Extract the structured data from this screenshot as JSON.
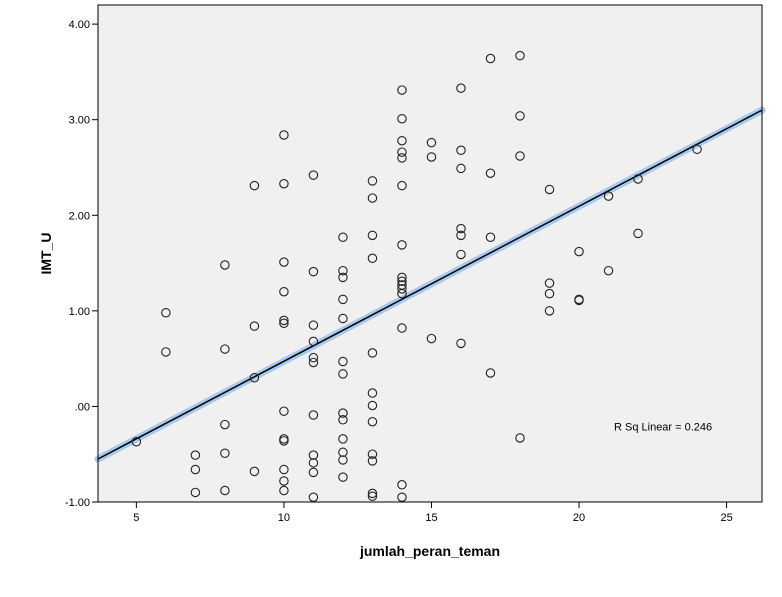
{
  "chart_data": {
    "type": "scatter",
    "title": "",
    "xlabel": "jumlah_peran_teman",
    "ylabel": "IMT_U",
    "xlim": [
      3.7,
      26.2
    ],
    "ylim": [
      -1.0,
      4.2
    ],
    "x_ticks": [
      5,
      10,
      15,
      20,
      25
    ],
    "x_tick_labels": [
      "5",
      "10",
      "15",
      "20",
      "25"
    ],
    "y_ticks": [
      -1,
      0,
      1,
      2,
      3,
      4
    ],
    "y_tick_labels": [
      "-1.00",
      ".00",
      "1.00",
      "2.00",
      "3.00",
      "4.00"
    ],
    "grid": false,
    "plot_background": "#f0f0f0",
    "fit_line": {
      "type": "linear",
      "x": [
        3.7,
        26.2
      ],
      "y": [
        -0.55,
        3.1
      ],
      "color": "#000000",
      "highlight_color": "#a8c8ee"
    },
    "annotation": "R Sq Linear = 0.246",
    "points": [
      {
        "x": 5,
        "y": -0.37
      },
      {
        "x": 6,
        "y": 0.98
      },
      {
        "x": 6,
        "y": 0.57
      },
      {
        "x": 7,
        "y": -0.51
      },
      {
        "x": 7,
        "y": -0.66
      },
      {
        "x": 7,
        "y": -0.9
      },
      {
        "x": 8,
        "y": 1.48
      },
      {
        "x": 8,
        "y": 0.6
      },
      {
        "x": 8,
        "y": -0.19
      },
      {
        "x": 8,
        "y": -0.49
      },
      {
        "x": 8,
        "y": -0.88
      },
      {
        "x": 9,
        "y": 2.31
      },
      {
        "x": 9,
        "y": 0.84
      },
      {
        "x": 9,
        "y": 0.3
      },
      {
        "x": 9,
        "y": -0.68
      },
      {
        "x": 10,
        "y": 2.84
      },
      {
        "x": 10,
        "y": 2.33
      },
      {
        "x": 10,
        "y": 1.51
      },
      {
        "x": 10,
        "y": 1.2
      },
      {
        "x": 10,
        "y": 0.9
      },
      {
        "x": 10,
        "y": 0.87
      },
      {
        "x": 10,
        "y": -0.05
      },
      {
        "x": 10,
        "y": -0.34
      },
      {
        "x": 10,
        "y": -0.36
      },
      {
        "x": 10,
        "y": -0.66
      },
      {
        "x": 10,
        "y": -0.78
      },
      {
        "x": 10,
        "y": -0.88
      },
      {
        "x": 11,
        "y": 2.42
      },
      {
        "x": 11,
        "y": 1.41
      },
      {
        "x": 11,
        "y": 0.85
      },
      {
        "x": 11,
        "y": 0.68
      },
      {
        "x": 11,
        "y": 0.51
      },
      {
        "x": 11,
        "y": 0.46
      },
      {
        "x": 11,
        "y": -0.09
      },
      {
        "x": 11,
        "y": -0.51
      },
      {
        "x": 11,
        "y": -0.59
      },
      {
        "x": 11,
        "y": -0.69
      },
      {
        "x": 11,
        "y": -0.95
      },
      {
        "x": 12,
        "y": 1.77
      },
      {
        "x": 12,
        "y": 1.42
      },
      {
        "x": 12,
        "y": 1.35
      },
      {
        "x": 12,
        "y": 1.12
      },
      {
        "x": 12,
        "y": 0.92
      },
      {
        "x": 12,
        "y": 0.47
      },
      {
        "x": 12,
        "y": 0.34
      },
      {
        "x": 12,
        "y": -0.07
      },
      {
        "x": 12,
        "y": -0.14
      },
      {
        "x": 12,
        "y": -0.34
      },
      {
        "x": 12,
        "y": -0.48
      },
      {
        "x": 12,
        "y": -0.56
      },
      {
        "x": 12,
        "y": -0.74
      },
      {
        "x": 13,
        "y": 2.36
      },
      {
        "x": 13,
        "y": 2.18
      },
      {
        "x": 13,
        "y": 1.79
      },
      {
        "x": 13,
        "y": 1.55
      },
      {
        "x": 13,
        "y": 0.56
      },
      {
        "x": 13,
        "y": 0.14
      },
      {
        "x": 13,
        "y": 0.01
      },
      {
        "x": 13,
        "y": -0.16
      },
      {
        "x": 13,
        "y": -0.5
      },
      {
        "x": 13,
        "y": -0.57
      },
      {
        "x": 13,
        "y": -0.91
      },
      {
        "x": 13,
        "y": -0.94
      },
      {
        "x": 14,
        "y": 3.31
      },
      {
        "x": 14,
        "y": 3.01
      },
      {
        "x": 14,
        "y": 2.78
      },
      {
        "x": 14,
        "y": 2.66
      },
      {
        "x": 14,
        "y": 2.6
      },
      {
        "x": 14,
        "y": 2.31
      },
      {
        "x": 14,
        "y": 1.69
      },
      {
        "x": 14,
        "y": 1.35
      },
      {
        "x": 14,
        "y": 1.31
      },
      {
        "x": 14,
        "y": 1.27
      },
      {
        "x": 14,
        "y": 1.23
      },
      {
        "x": 14,
        "y": 1.18
      },
      {
        "x": 14,
        "y": 0.82
      },
      {
        "x": 14,
        "y": -0.82
      },
      {
        "x": 14,
        "y": -0.95
      },
      {
        "x": 15,
        "y": 2.76
      },
      {
        "x": 15,
        "y": 2.61
      },
      {
        "x": 15,
        "y": 0.71
      },
      {
        "x": 16,
        "y": 3.33
      },
      {
        "x": 16,
        "y": 2.68
      },
      {
        "x": 16,
        "y": 2.49
      },
      {
        "x": 16,
        "y": 1.86
      },
      {
        "x": 16,
        "y": 1.79
      },
      {
        "x": 16,
        "y": 1.59
      },
      {
        "x": 16,
        "y": 0.66
      },
      {
        "x": 17,
        "y": 3.64
      },
      {
        "x": 17,
        "y": 2.44
      },
      {
        "x": 17,
        "y": 1.77
      },
      {
        "x": 17,
        "y": 0.35
      },
      {
        "x": 18,
        "y": 3.67
      },
      {
        "x": 18,
        "y": 3.04
      },
      {
        "x": 18,
        "y": 2.62
      },
      {
        "x": 18,
        "y": -0.33
      },
      {
        "x": 19,
        "y": 2.27
      },
      {
        "x": 19,
        "y": 1.29
      },
      {
        "x": 19,
        "y": 1.18
      },
      {
        "x": 19,
        "y": 1.0
      },
      {
        "x": 20,
        "y": 1.62
      },
      {
        "x": 20,
        "y": 1.12
      },
      {
        "x": 20,
        "y": 1.11
      },
      {
        "x": 21,
        "y": 2.2
      },
      {
        "x": 21,
        "y": 1.42
      },
      {
        "x": 22,
        "y": 2.38
      },
      {
        "x": 22,
        "y": 1.81
      },
      {
        "x": 24,
        "y": 2.69
      }
    ]
  }
}
